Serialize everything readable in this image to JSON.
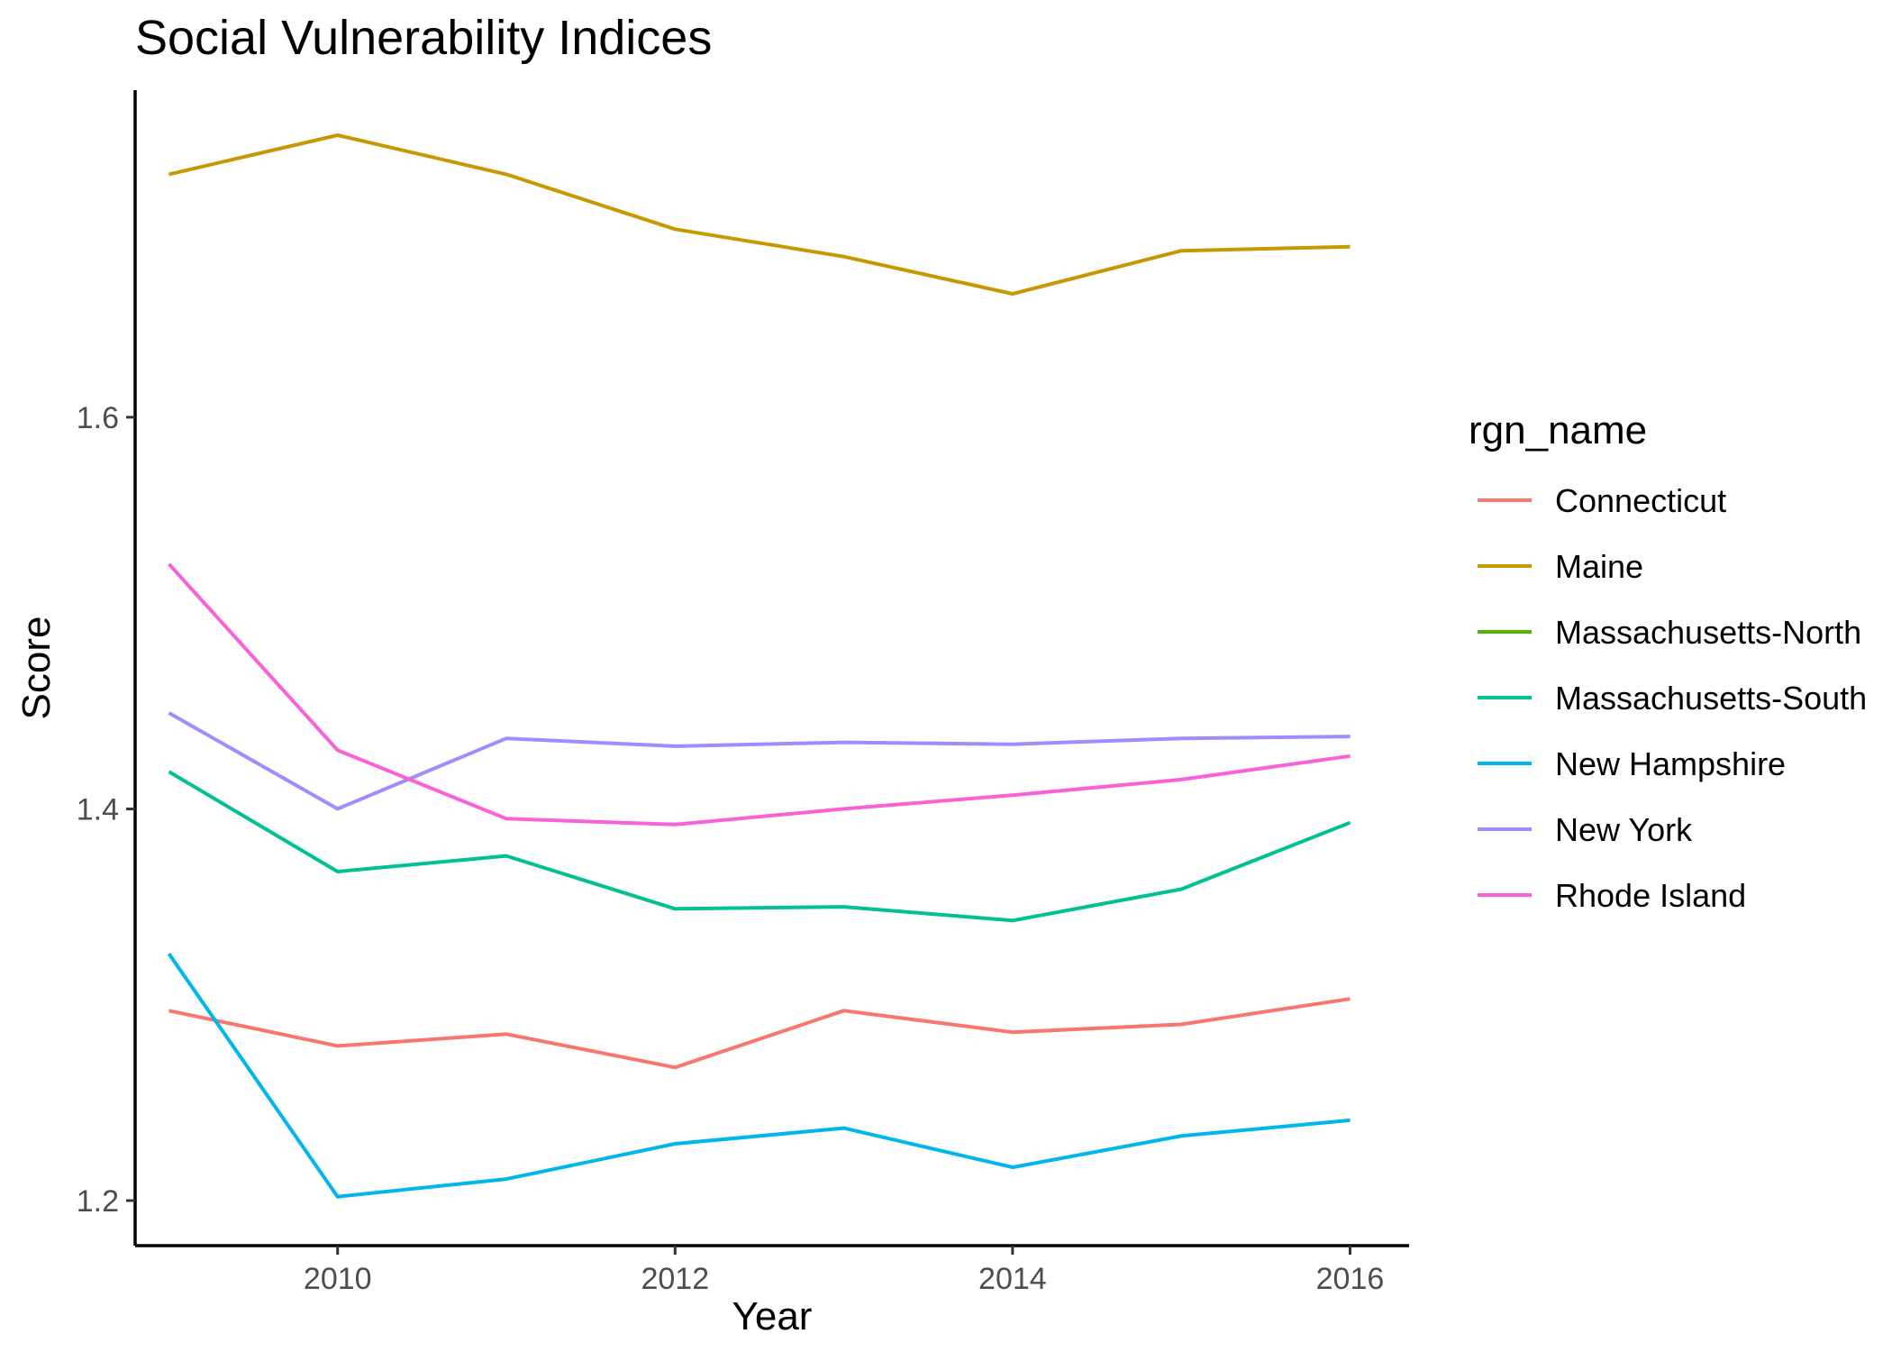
{
  "chart_data": {
    "type": "line",
    "title": "Social Vulnerability Indices",
    "xlabel": "Year",
    "ylabel": "Score",
    "x": [
      2009,
      2010,
      2011,
      2012,
      2013,
      2014,
      2015,
      2016
    ],
    "xlim": [
      2008.8,
      2016.35
    ],
    "ylim": [
      1.177,
      1.767
    ],
    "x_ticks": [
      2010,
      2012,
      2014,
      2016
    ],
    "y_ticks": [
      1.2,
      1.4,
      1.6
    ],
    "x_tick_labels": [
      "2010",
      "2012",
      "2014",
      "2016"
    ],
    "y_tick_labels": [
      "1.2",
      "1.4",
      "1.6"
    ],
    "grid": false,
    "legend": {
      "title": "rgn_name",
      "position": "right"
    },
    "series": [
      {
        "name": "Connecticut",
        "color": "#F8766D",
        "values": [
          1.297,
          1.279,
          1.285,
          1.268,
          1.297,
          1.286,
          1.29,
          1.303
        ]
      },
      {
        "name": "Maine",
        "color": "#C49A00",
        "values": [
          1.724,
          1.744,
          1.724,
          1.696,
          1.682,
          1.663,
          1.685,
          1.687
        ]
      },
      {
        "name": "Massachusetts-North",
        "color": "#53B400",
        "values": [
          null,
          null,
          null,
          null,
          null,
          null,
          null,
          null
        ]
      },
      {
        "name": "Massachusetts-South",
        "color": "#00C094",
        "values": [
          1.419,
          1.368,
          1.376,
          1.349,
          1.35,
          1.343,
          1.359,
          1.393
        ]
      },
      {
        "name": "New Hampshire",
        "color": "#00B6EB",
        "values": [
          1.326,
          1.202,
          1.211,
          1.229,
          1.237,
          1.217,
          1.233,
          1.241
        ]
      },
      {
        "name": "New York",
        "color": "#A58AFF",
        "values": [
          1.449,
          1.4,
          1.436,
          1.432,
          1.434,
          1.433,
          1.436,
          1.437
        ]
      },
      {
        "name": "Rhode Island",
        "color": "#FB61D7",
        "values": [
          1.525,
          1.43,
          1.395,
          1.392,
          1.4,
          1.407,
          1.415,
          1.427
        ]
      }
    ]
  }
}
